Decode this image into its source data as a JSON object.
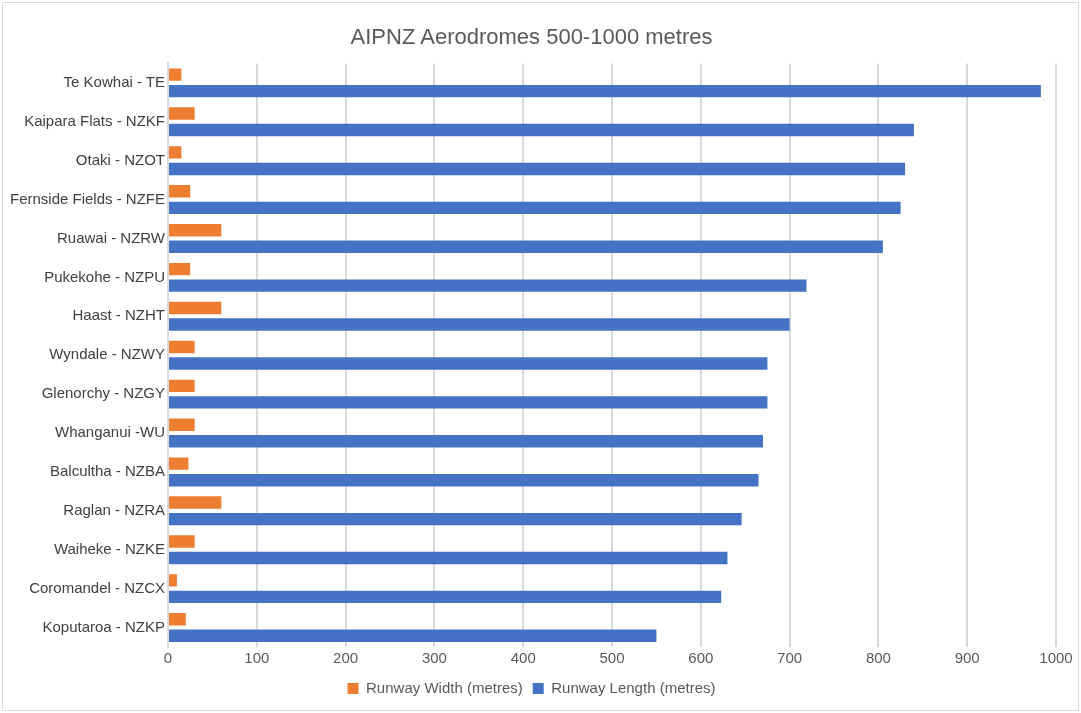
{
  "chart_data": {
    "type": "bar",
    "orientation": "horizontal",
    "title": "AIPNZ Aerodromes 500-1000 metres",
    "categories": [
      "Te Kowhai - TE",
      "Kaipara Flats - NZKF",
      "Otaki - NZOT",
      "Fernside Fields - NZFE",
      "Ruawai - NZRW",
      "Pukekohe - NZPU",
      "Haast - NZHT",
      "Wyndale - NZWY",
      "Glenorchy - NZGY",
      "Whanganui -WU",
      "Balcultha - NZBA",
      "Raglan - NZRA",
      "Waiheke - NZKE",
      "Coromandel - NZCX",
      "Koputaroa - NZKP"
    ],
    "series": [
      {
        "name": "Runway Width (metres)",
        "color": "#ed7d31",
        "values": [
          15,
          30,
          15,
          25,
          60,
          25,
          60,
          30,
          30,
          30,
          23,
          60,
          30,
          10,
          20
        ]
      },
      {
        "name": "Runway Length (metres)",
        "color": "#4472c4",
        "values": [
          983,
          840,
          830,
          825,
          805,
          719,
          700,
          675,
          675,
          670,
          665,
          646,
          630,
          623,
          550
        ]
      }
    ],
    "xlim": [
      0,
      1000
    ],
    "xticks": [
      0,
      100,
      200,
      300,
      400,
      500,
      600,
      700,
      800,
      900,
      1000
    ],
    "grid": "x",
    "legend": "bottom"
  }
}
